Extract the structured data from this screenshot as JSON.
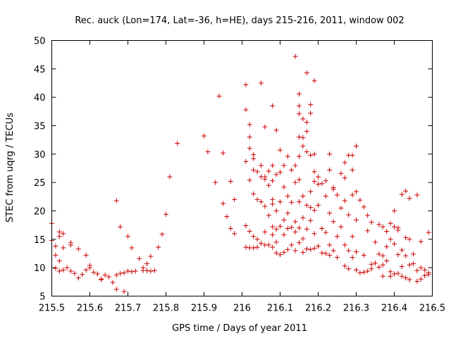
{
  "chart_data": {
    "type": "scatter",
    "title": "Rec. auck (Lon=174, Lat=-36, h=HE), days 215-216, 2011, window 002",
    "xlabel": "GPS time / Days of year 2011",
    "ylabel": "STEC from uqrg / TECUs",
    "xlim": [
      215.5,
      216.5
    ],
    "ylim": [
      5,
      50
    ],
    "xticks": [
      "215.5",
      "215.6",
      "215.7",
      "215.8",
      "215.9",
      "216",
      "216.1",
      "216.2",
      "216.3",
      "216.4",
      "216.5"
    ],
    "yticks": [
      "5",
      "10",
      "15",
      "20",
      "25",
      "30",
      "35",
      "40",
      "45",
      "50"
    ],
    "grid": false,
    "marker": "plus",
    "color": "#cc0000",
    "series": [
      {
        "points": [
          [
            215.5,
            17.8
          ],
          [
            215.5,
            14.8
          ],
          [
            215.51,
            13.8
          ],
          [
            215.51,
            12.2
          ],
          [
            215.51,
            9.9
          ],
          [
            215.52,
            16.3
          ],
          [
            215.52,
            15.5
          ],
          [
            215.52,
            11.2
          ],
          [
            215.52,
            9.4
          ],
          [
            215.53,
            13.5
          ],
          [
            215.53,
            9.6
          ],
          [
            215.53,
            16.0
          ],
          [
            215.54,
            10.0
          ],
          [
            215.55,
            14.4
          ],
          [
            215.55,
            14.0
          ],
          [
            215.55,
            9.4
          ],
          [
            215.56,
            9.0
          ],
          [
            215.57,
            13.3
          ],
          [
            215.57,
            8.2
          ],
          [
            215.58,
            8.8
          ],
          [
            215.59,
            12.2
          ],
          [
            215.59,
            9.6
          ],
          [
            215.6,
            10.4
          ],
          [
            215.6,
            10.0
          ],
          [
            215.61,
            9.2
          ],
          [
            215.62,
            8.9
          ],
          [
            215.63,
            8.0
          ],
          [
            215.63,
            7.9
          ],
          [
            215.64,
            8.7
          ],
          [
            215.65,
            8.4
          ],
          [
            215.66,
            7.4
          ],
          [
            215.67,
            21.8
          ],
          [
            215.67,
            8.7
          ],
          [
            215.67,
            6.2
          ],
          [
            215.68,
            9.0
          ],
          [
            215.68,
            17.2
          ],
          [
            215.69,
            5.8
          ],
          [
            215.69,
            9.1
          ],
          [
            215.7,
            15.5
          ],
          [
            215.7,
            9.4
          ],
          [
            215.71,
            13.5
          ],
          [
            215.71,
            9.3
          ],
          [
            215.72,
            9.4
          ],
          [
            215.73,
            11.6
          ],
          [
            215.74,
            9.5
          ],
          [
            215.74,
            10.0
          ],
          [
            215.75,
            10.7
          ],
          [
            215.75,
            9.5
          ],
          [
            215.76,
            9.4
          ],
          [
            215.76,
            12.0
          ],
          [
            215.77,
            9.5
          ],
          [
            215.78,
            13.6
          ],
          [
            215.79,
            15.9
          ],
          [
            215.8,
            19.4
          ],
          [
            215.81,
            26.0
          ],
          [
            215.83,
            31.9
          ],
          [
            215.9,
            33.2
          ],
          [
            215.91,
            30.4
          ],
          [
            215.93,
            25.0
          ],
          [
            215.94,
            40.2
          ],
          [
            215.95,
            21.3
          ],
          [
            215.95,
            30.2
          ],
          [
            215.96,
            19.0
          ],
          [
            215.97,
            25.2
          ],
          [
            215.97,
            16.9
          ],
          [
            215.98,
            16.0
          ],
          [
            215.98,
            22.0
          ],
          [
            216.01,
            37.8
          ],
          [
            216.01,
            42.2
          ],
          [
            216.01,
            28.7
          ],
          [
            216.01,
            17.4
          ],
          [
            216.01,
            13.6
          ],
          [
            216.02,
            35.2
          ],
          [
            216.02,
            33.0
          ],
          [
            216.02,
            31.0
          ],
          [
            216.02,
            25.4
          ],
          [
            216.02,
            16.4
          ],
          [
            216.02,
            13.5
          ],
          [
            216.03,
            29.9
          ],
          [
            216.03,
            29.2
          ],
          [
            216.03,
            27.2
          ],
          [
            216.03,
            23.0
          ],
          [
            216.03,
            15.5
          ],
          [
            216.03,
            13.5
          ],
          [
            216.04,
            26.9
          ],
          [
            216.04,
            22.0
          ],
          [
            216.04,
            15.0
          ],
          [
            216.04,
            13.6
          ],
          [
            216.05,
            42.5
          ],
          [
            216.05,
            28.0
          ],
          [
            216.05,
            26.0
          ],
          [
            216.05,
            21.6
          ],
          [
            216.05,
            14.3
          ],
          [
            216.06,
            34.8
          ],
          [
            216.06,
            26.0
          ],
          [
            216.06,
            25.6
          ],
          [
            216.06,
            20.8
          ],
          [
            216.06,
            16.3
          ],
          [
            216.06,
            14.0
          ],
          [
            216.07,
            27.0
          ],
          [
            216.07,
            24.5
          ],
          [
            216.07,
            19.2
          ],
          [
            216.07,
            14.0
          ],
          [
            216.08,
            38.5
          ],
          [
            216.08,
            28.0
          ],
          [
            216.08,
            25.3
          ],
          [
            216.08,
            22.0
          ],
          [
            216.08,
            21.2
          ],
          [
            216.08,
            17.2
          ],
          [
            216.08,
            15.8
          ],
          [
            216.08,
            13.6
          ],
          [
            216.09,
            34.2
          ],
          [
            216.09,
            26.4
          ],
          [
            216.09,
            20.0
          ],
          [
            216.09,
            16.8
          ],
          [
            216.09,
            14.5
          ],
          [
            216.09,
            12.6
          ],
          [
            216.1,
            30.7
          ],
          [
            216.1,
            26.8
          ],
          [
            216.1,
            21.6
          ],
          [
            216.1,
            17.3
          ],
          [
            216.1,
            12.3
          ],
          [
            216.11,
            28.0
          ],
          [
            216.11,
            24.2
          ],
          [
            216.11,
            18.4
          ],
          [
            216.11,
            15.8
          ],
          [
            216.11,
            12.7
          ],
          [
            216.12,
            29.6
          ],
          [
            216.12,
            22.6
          ],
          [
            216.12,
            19.6
          ],
          [
            216.12,
            16.9
          ],
          [
            216.12,
            13.2
          ],
          [
            216.13,
            27.2
          ],
          [
            216.13,
            21.5
          ],
          [
            216.13,
            17.1
          ],
          [
            216.13,
            14.0
          ],
          [
            216.14,
            47.2
          ],
          [
            216.14,
            28.0
          ],
          [
            216.14,
            25.0
          ],
          [
            216.14,
            18.1
          ],
          [
            216.14,
            16.3
          ],
          [
            216.14,
            13.0
          ],
          [
            216.15,
            40.6
          ],
          [
            216.15,
            38.5
          ],
          [
            216.15,
            37.1
          ],
          [
            216.15,
            33.0
          ],
          [
            216.15,
            29.6
          ],
          [
            216.15,
            25.5
          ],
          [
            216.15,
            21.6
          ],
          [
            216.15,
            17.0
          ],
          [
            216.15,
            14.4
          ],
          [
            216.16,
            36.2
          ],
          [
            216.16,
            32.9
          ],
          [
            216.16,
            31.4
          ],
          [
            216.16,
            22.6
          ],
          [
            216.16,
            18.8
          ],
          [
            216.16,
            15.1
          ],
          [
            216.16,
            12.7
          ],
          [
            216.17,
            44.3
          ],
          [
            216.17,
            35.6
          ],
          [
            216.17,
            34.0
          ],
          [
            216.17,
            30.4
          ],
          [
            216.17,
            21.0
          ],
          [
            216.17,
            16.8
          ],
          [
            216.17,
            13.3
          ],
          [
            216.18,
            38.7
          ],
          [
            216.18,
            37.2
          ],
          [
            216.18,
            29.8
          ],
          [
            216.18,
            23.4
          ],
          [
            216.18,
            20.6
          ],
          [
            216.18,
            18.3
          ],
          [
            216.18,
            13.2
          ],
          [
            216.19,
            42.9
          ],
          [
            216.19,
            30.0
          ],
          [
            216.19,
            26.9
          ],
          [
            216.19,
            25.2
          ],
          [
            216.19,
            20.1
          ],
          [
            216.19,
            16.0
          ],
          [
            216.19,
            13.4
          ],
          [
            216.2,
            26.0
          ],
          [
            216.2,
            24.7
          ],
          [
            216.2,
            21.0
          ],
          [
            216.2,
            13.8
          ],
          [
            216.21,
            24.8
          ],
          [
            216.21,
            16.9
          ],
          [
            216.21,
            12.6
          ],
          [
            216.22,
            25.3
          ],
          [
            216.22,
            22.6
          ],
          [
            216.22,
            16.2
          ],
          [
            216.22,
            12.5
          ],
          [
            216.23,
            30.0
          ],
          [
            216.23,
            27.2
          ],
          [
            216.23,
            19.6
          ],
          [
            216.23,
            14.0
          ],
          [
            216.23,
            12.2
          ],
          [
            216.24,
            24.1
          ],
          [
            216.24,
            23.8
          ],
          [
            216.24,
            18.1
          ],
          [
            216.24,
            13.0
          ],
          [
            216.25,
            22.8
          ],
          [
            216.25,
            15.5
          ],
          [
            216.25,
            11.8
          ],
          [
            216.26,
            26.6
          ],
          [
            216.26,
            20.5
          ],
          [
            216.26,
            17.2
          ],
          [
            216.27,
            28.5
          ],
          [
            216.27,
            25.8
          ],
          [
            216.27,
            21.8
          ],
          [
            216.27,
            14.0
          ],
          [
            216.27,
            10.3
          ],
          [
            216.28,
            29.8
          ],
          [
            216.28,
            19.3
          ],
          [
            216.28,
            13.0
          ],
          [
            216.28,
            9.8
          ],
          [
            216.29,
            29.8
          ],
          [
            216.29,
            27.2
          ],
          [
            216.29,
            22.8
          ],
          [
            216.29,
            15.5
          ],
          [
            216.29,
            11.8
          ],
          [
            216.3,
            31.4
          ],
          [
            216.3,
            23.4
          ],
          [
            216.3,
            18.4
          ],
          [
            216.3,
            12.8
          ],
          [
            216.3,
            9.6
          ],
          [
            216.31,
            21.9
          ],
          [
            216.31,
            9.1
          ],
          [
            216.32,
            20.7
          ],
          [
            216.32,
            12.2
          ],
          [
            216.32,
            9.2
          ],
          [
            216.33,
            19.2
          ],
          [
            216.33,
            16.5
          ],
          [
            216.33,
            9.4
          ],
          [
            216.34,
            18.0
          ],
          [
            216.34,
            10.6
          ],
          [
            216.34,
            9.8
          ],
          [
            216.35,
            14.5
          ],
          [
            216.35,
            10.8
          ],
          [
            216.36,
            17.6
          ],
          [
            216.36,
            12.4
          ],
          [
            216.36,
            10.1
          ],
          [
            216.37,
            17.2
          ],
          [
            216.37,
            12.1
          ],
          [
            216.37,
            10.5
          ],
          [
            216.37,
            8.5
          ],
          [
            216.38,
            16.4
          ],
          [
            216.38,
            13.7
          ],
          [
            216.38,
            11.2
          ],
          [
            216.39,
            17.8
          ],
          [
            216.39,
            15.0
          ],
          [
            216.39,
            9.3
          ],
          [
            216.39,
            8.5
          ],
          [
            216.4,
            20.0
          ],
          [
            216.4,
            17.2
          ],
          [
            216.4,
            14.2
          ],
          [
            216.4,
            8.9
          ],
          [
            216.41,
            17.0
          ],
          [
            216.41,
            16.6
          ],
          [
            216.41,
            12.3
          ],
          [
            216.41,
            9.0
          ],
          [
            216.42,
            22.9
          ],
          [
            216.42,
            13.1
          ],
          [
            216.42,
            10.2
          ],
          [
            216.42,
            8.5
          ],
          [
            216.43,
            23.5
          ],
          [
            216.43,
            15.3
          ],
          [
            216.43,
            12.1
          ],
          [
            216.43,
            8.2
          ],
          [
            216.44,
            22.2
          ],
          [
            216.44,
            15.0
          ],
          [
            216.44,
            10.5
          ],
          [
            216.44,
            7.9
          ],
          [
            216.45,
            12.4
          ],
          [
            216.45,
            10.7
          ],
          [
            216.46,
            22.8
          ],
          [
            216.46,
            9.5
          ],
          [
            216.46,
            7.6
          ],
          [
            216.47,
            14.6
          ],
          [
            216.47,
            10.0
          ],
          [
            216.47,
            8.0
          ],
          [
            216.48,
            9.6
          ],
          [
            216.48,
            8.6
          ],
          [
            216.49,
            16.2
          ],
          [
            216.49,
            9.1
          ],
          [
            216.49,
            8.8
          ]
        ]
      }
    ]
  }
}
